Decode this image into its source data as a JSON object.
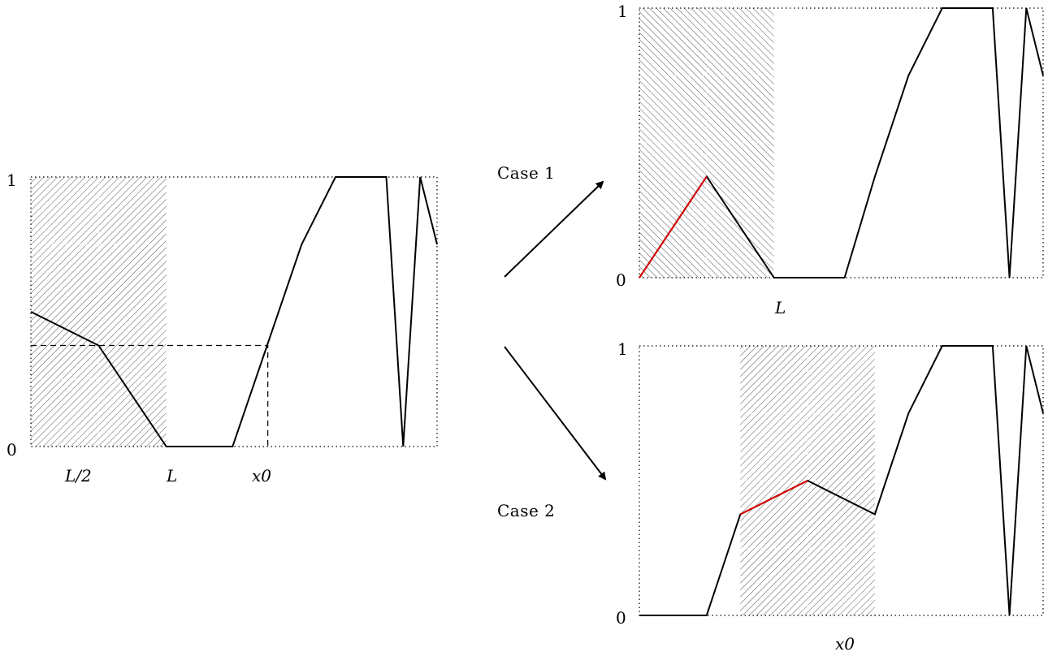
{
  "panels": {
    "left": {
      "y_top_label": "1",
      "y_bottom_label": "0",
      "x_labels": [
        "L/2",
        "L",
        "x0"
      ],
      "curve": [
        [
          0,
          0.5
        ],
        [
          1,
          0.375
        ],
        [
          2,
          0
        ],
        [
          2.98,
          0
        ],
        [
          4,
          0.75
        ],
        [
          4.5,
          1
        ],
        [
          5.25,
          1
        ],
        [
          5.5,
          0
        ],
        [
          5.75,
          1
        ],
        [
          6,
          0.75
        ]
      ],
      "hatch_range": [
        0,
        2
      ],
      "grid_columns": [
        1
      ],
      "grid_rows": [
        0.25,
        0.75
      ],
      "dashed_level": 0.375,
      "dashed_x": 3.5
    },
    "case1": {
      "label": "Case 1",
      "y_top_label": "1",
      "y_bottom_label": "0",
      "x_labels": [
        "L"
      ],
      "curve": [
        [
          0,
          0
        ],
        [
          1,
          0.375
        ],
        [
          2,
          0
        ],
        [
          3.05,
          0
        ],
        [
          3.5,
          0.375
        ],
        [
          4,
          0.75
        ],
        [
          4.5,
          1
        ],
        [
          5.25,
          1
        ],
        [
          5.5,
          0
        ],
        [
          5.75,
          1
        ],
        [
          6,
          0.75
        ]
      ],
      "red_segment": [
        [
          0,
          0
        ],
        [
          1,
          0.375
        ]
      ],
      "hatch_range": [
        0,
        2
      ],
      "grid_columns": [
        1
      ],
      "grid_rows": [
        0.25,
        0.5,
        0.75
      ]
    },
    "case2": {
      "label": "Case 2",
      "y_top_label": "1",
      "y_bottom_label": "0",
      "x_labels": [
        "x0"
      ],
      "curve": [
        [
          0,
          0
        ],
        [
          1,
          0
        ],
        [
          1.5,
          0.375
        ],
        [
          2.5,
          0.5
        ],
        [
          3.5,
          0.375
        ],
        [
          4,
          0.75
        ],
        [
          4.5,
          1
        ],
        [
          5.25,
          1
        ],
        [
          5.5,
          0
        ],
        [
          5.75,
          1
        ],
        [
          6,
          0.75
        ]
      ],
      "red_segment": [
        [
          1.5,
          0.375
        ],
        [
          2.5,
          0.5
        ]
      ],
      "hatch_range": [
        1.5,
        3.5
      ],
      "grid_columns": [
        2.5
      ],
      "grid_rows": [
        0.25,
        0.5,
        0.75
      ]
    }
  }
}
